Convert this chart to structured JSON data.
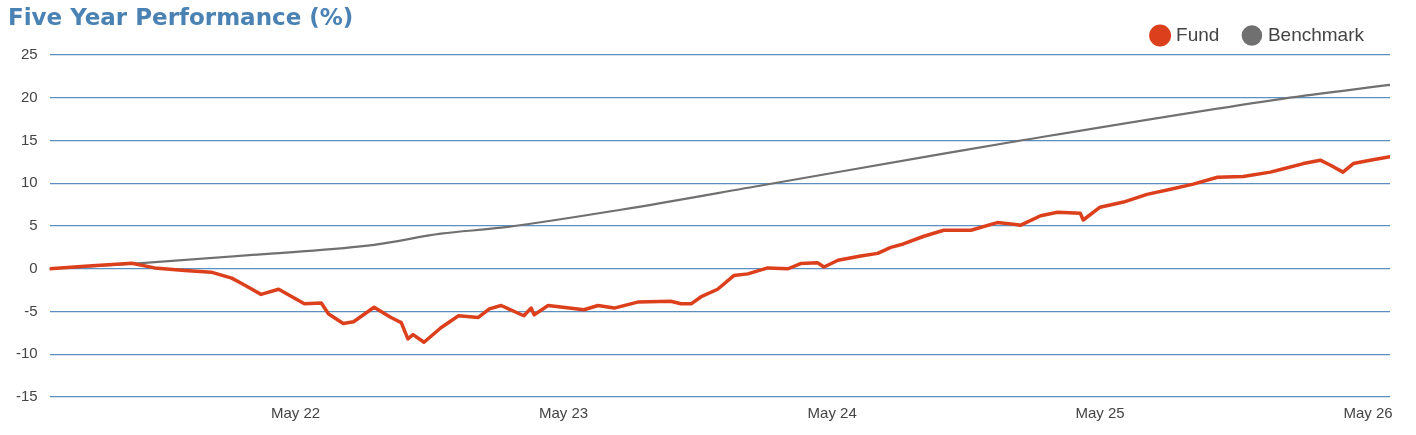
{
  "chart_data": {
    "type": "line",
    "title": "Five Year Performance (%)",
    "xlim": [
      "2021-05-31",
      "2026-05-31"
    ],
    "xticks": [
      {
        "value": "2022-05-01",
        "label": "May 22"
      },
      {
        "value": "2023-05-01",
        "label": "May 23"
      },
      {
        "value": "2024-05-01",
        "label": "May 24"
      },
      {
        "value": "2025-05-01",
        "label": "May 25"
      },
      {
        "value": "2026-05-01",
        "label": "May 26"
      }
    ],
    "ylim": [
      -15,
      25
    ],
    "yticks": [
      -15,
      -10,
      -5,
      0,
      5,
      10,
      15,
      20,
      25
    ],
    "grid": "y",
    "legend": "top right",
    "marker": "none",
    "line_style": "solid",
    "series": [
      {
        "name": "Fund",
        "color": "#dc3f1c",
        "x": [
          "2021-05-31",
          "2021-07-18",
          "2021-09-20",
          "2021-10-21",
          "2021-12-01",
          "2022-01-06",
          "2022-02-03",
          "2022-02-16",
          "2022-03-15",
          "2022-04-08",
          "2022-05-13",
          "2022-06-05",
          "2022-06-15",
          "2022-07-05",
          "2022-07-19",
          "2022-08-16",
          "2022-09-08",
          "2022-09-22",
          "2022-10-01",
          "2022-10-08",
          "2022-10-23",
          "2022-11-15",
          "2022-12-09",
          "2023-01-05",
          "2023-01-20",
          "2023-02-05",
          "2023-03-08",
          "2023-03-18",
          "2023-03-22",
          "2023-04-10",
          "2023-05-29",
          "2023-06-17",
          "2023-07-09",
          "2023-08-10",
          "2023-09-24",
          "2023-10-08",
          "2023-10-22",
          "2023-11-04",
          "2023-11-27",
          "2023-12-19",
          "2024-01-07",
          "2024-02-03",
          "2024-03-02",
          "2024-03-19",
          "2024-04-11",
          "2024-04-20",
          "2024-05-09",
          "2024-06-09",
          "2024-07-02",
          "2024-07-20",
          "2024-08-06",
          "2024-09-03",
          "2024-09-30",
          "2024-11-06",
          "2024-12-12",
          "2025-01-13",
          "2025-02-09",
          "2025-03-04",
          "2025-04-04",
          "2025-04-08",
          "2025-05-01",
          "2025-06-02",
          "2025-07-04",
          "2025-08-05",
          "2025-09-05",
          "2025-10-08",
          "2025-11-12",
          "2025-12-19",
          "2026-01-06",
          "2026-02-02",
          "2026-02-25",
          "2026-03-11",
          "2026-03-28",
          "2026-04-11",
          "2026-05-04",
          "2026-05-31"
        ],
        "values": [
          0,
          0.3,
          0.65,
          0.1,
          -0.2,
          -0.4,
          -1.1,
          -1.7,
          -3.0,
          -2.4,
          -4.1,
          -4.0,
          -5.3,
          -6.4,
          -6.2,
          -4.5,
          -5.7,
          -6.3,
          -8.2,
          -7.7,
          -8.6,
          -6.9,
          -5.5,
          -5.7,
          -4.7,
          -4.3,
          -5.5,
          -4.6,
          -5.4,
          -4.3,
          -4.8,
          -4.3,
          -4.6,
          -3.9,
          -3.8,
          -4.1,
          -4.1,
          -3.3,
          -2.4,
          -0.8,
          -0.6,
          0.1,
          0,
          0.6,
          0.7,
          0.2,
          1.0,
          1.5,
          1.8,
          2.5,
          2.9,
          3.8,
          4.5,
          4.5,
          5.4,
          5.1,
          6.2,
          6.6,
          6.5,
          5.7,
          7.2,
          7.8,
          8.7,
          9.3,
          9.9,
          10.7,
          10.8,
          11.3,
          11.7,
          12.3,
          12.7,
          12.1,
          11.3,
          12.3,
          12.7,
          13.1
        ]
      },
      {
        "name": "Benchmark",
        "color": "#707070",
        "x": [
          "2021-05-31",
          "2021-10-03",
          "2022-04-02",
          "2022-08-16",
          "2022-11-15",
          "2023-02-05",
          "2023-07-18",
          "2024-01-29",
          "2024-09-26",
          "2024-12-30",
          "2026-01-06",
          "2026-05-31"
        ],
        "values": [
          0,
          0.65,
          1.8,
          2.8,
          4.1,
          4.8,
          6.9,
          9.8,
          13.4,
          14.8,
          19.9,
          21.5
        ]
      }
    ]
  }
}
